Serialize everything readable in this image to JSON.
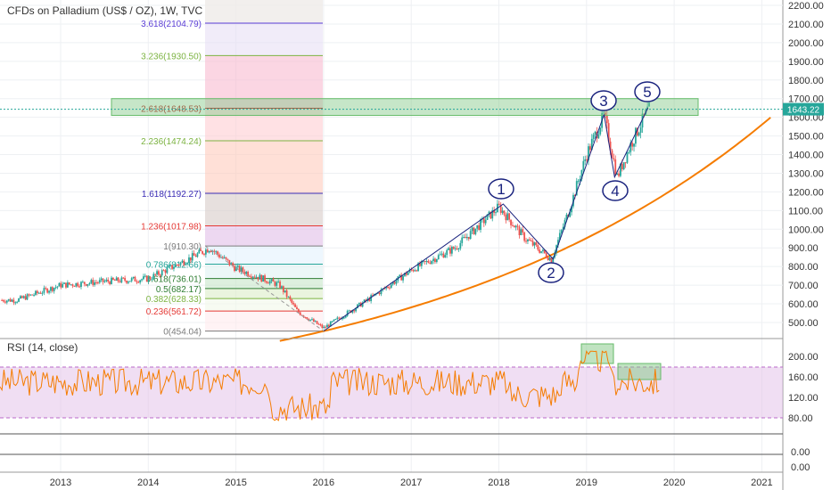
{
  "chart_data": [
    {
      "type": "line",
      "title": "CFDs on Palladium (US$ / OZ), 1W, TVC",
      "price_label": "1643.22",
      "y_axis_ticks": [
        "2200.00",
        "2100.00",
        "2000.00",
        "1900.00",
        "1800.00",
        "1700.00",
        "1600.00",
        "1500.00",
        "1400.00",
        "1300.00",
        "1200.00",
        "1100.00",
        "1000.00",
        "900.00",
        "800.00",
        "700.00",
        "600.00",
        "500.00"
      ],
      "y_axis_values": [
        2200,
        2100,
        2000,
        1900,
        1800,
        1700,
        1600,
        1500,
        1400,
        1300,
        1200,
        1100,
        1000,
        900,
        800,
        700,
        600,
        500
      ],
      "x_axis_labels": [
        "2013",
        "2014",
        "2015",
        "2016",
        "2017",
        "2018",
        "2019",
        "2020",
        "2021"
      ],
      "fib_levels": [
        {
          "label": "3.618(2104.79)",
          "value": 2104.79,
          "color": "#5b3fd6"
        },
        {
          "label": "3.236(1930.50)",
          "value": 1930.5,
          "color": "#7cb342"
        },
        {
          "label": "2.618(1648.53)",
          "value": 1648.53,
          "color": "#b71c1c"
        },
        {
          "label": "2.236(1474.24)",
          "value": 1474.24,
          "color": "#7cb342"
        },
        {
          "label": "1.618(1192.27)",
          "value": 1192.27,
          "color": "#3a2bb5"
        },
        {
          "label": "1.236(1017.98)",
          "value": 1017.98,
          "color": "#e53935"
        },
        {
          "label": "1(910.30)",
          "value": 910.3,
          "color": "#7b7b7b"
        },
        {
          "label": "0.786(812.66)",
          "value": 812.66,
          "color": "#26a69a"
        },
        {
          "label": "0.618(736.01)",
          "value": 736.01,
          "color": "#2e7d32"
        },
        {
          "label": "0.5(682.17)",
          "value": 682.17,
          "color": "#2e7d32"
        },
        {
          "label": "0.382(628.33)",
          "value": 628.33,
          "color": "#7cb342"
        },
        {
          "label": "0.236(561.72)",
          "value": 561.72,
          "color": "#e53935"
        },
        {
          "label": "0(454.04)",
          "value": 454.04,
          "color": "#7b7b7b"
        }
      ],
      "wave_labels": [
        "1",
        "2",
        "3",
        "4",
        "5"
      ],
      "price_series": [
        {
          "year": 2012.5,
          "price": 620
        },
        {
          "year": 2013.0,
          "price": 700
        },
        {
          "year": 2013.5,
          "price": 720
        },
        {
          "year": 2014.0,
          "price": 735
        },
        {
          "year": 2014.5,
          "price": 850
        },
        {
          "year": 2014.7,
          "price": 900
        },
        {
          "year": 2015.0,
          "price": 790
        },
        {
          "year": 2015.5,
          "price": 700
        },
        {
          "year": 2015.7,
          "price": 560
        },
        {
          "year": 2016.0,
          "price": 470
        },
        {
          "year": 2016.5,
          "price": 620
        },
        {
          "year": 2017.0,
          "price": 780
        },
        {
          "year": 2017.5,
          "price": 900
        },
        {
          "year": 2018.0,
          "price": 1120
        },
        {
          "year": 2018.3,
          "price": 950
        },
        {
          "year": 2018.6,
          "price": 840
        },
        {
          "year": 2018.8,
          "price": 1100
        },
        {
          "year": 2019.0,
          "price": 1400
        },
        {
          "year": 2019.2,
          "price": 1610
        },
        {
          "year": 2019.35,
          "price": 1280
        },
        {
          "year": 2019.5,
          "price": 1450
        },
        {
          "year": 2019.7,
          "price": 1640
        }
      ],
      "elliott_points": [
        {
          "year": 2016.0,
          "price": 454
        },
        {
          "year": 2018.05,
          "price": 1135
        },
        {
          "year": 2018.62,
          "price": 840
        },
        {
          "year": 2019.2,
          "price": 1615
        },
        {
          "year": 2019.32,
          "price": 1280
        },
        {
          "year": 2019.7,
          "price": 1650
        }
      ]
    },
    {
      "type": "line",
      "title": "RSI (14, close)",
      "y_axis_ticks": [
        "200.00",
        "160.00",
        "120.00",
        "80.00"
      ],
      "y_axis_values": [
        200,
        160,
        120,
        80
      ],
      "lower_ticks": [
        "0.00",
        "0.00"
      ],
      "colors": {
        "rsi_line": "#f57c00",
        "band": "#e1bee7",
        "price_up": "#26a69a",
        "price_down": "#ef5350",
        "trendline": "#f57c00",
        "elliott": "#1a237e",
        "highlight": "#81c784"
      }
    }
  ]
}
